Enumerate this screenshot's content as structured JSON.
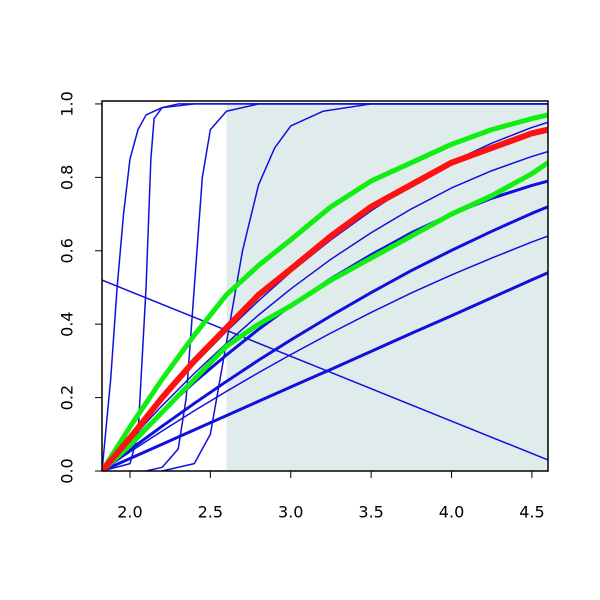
{
  "chart_data": {
    "type": "line",
    "xlim": [
      1.826,
      4.6
    ],
    "ylim": [
      0,
      1.008
    ],
    "xticks": [
      {
        "value": 2,
        "label": "2.0"
      },
      {
        "value": 2.5,
        "label": "2.5"
      },
      {
        "value": 3,
        "label": "3.0"
      },
      {
        "value": 3.5,
        "label": "3.5"
      },
      {
        "value": 4,
        "label": "4.0"
      },
      {
        "value": 4.5,
        "label": "4.5"
      }
    ],
    "yticks": [
      {
        "value": 0,
        "label": "0.0"
      },
      {
        "value": 0.2,
        "label": "0.2"
      },
      {
        "value": 0.4,
        "label": "0.4"
      },
      {
        "value": 0.6,
        "label": "0.6"
      },
      {
        "value": 0.8,
        "label": "0.8"
      },
      {
        "value": 1,
        "label": "1.0"
      }
    ],
    "shaded_region": {
      "x": [
        2.6,
        4.6
      ],
      "y": [
        0,
        1
      ],
      "color": "#e0ecec"
    },
    "x": [
      1.826,
      2.0,
      2.2,
      2.4,
      2.6,
      2.8,
      3.0,
      3.25,
      3.5,
      3.75,
      4.0,
      4.25,
      4.5,
      4.6
    ],
    "series": [
      {
        "color": "#1010dd",
        "width": 1.5,
        "x": [
          1.826,
          4.6
        ],
        "values": [
          0.52,
          0.03
        ]
      },
      {
        "color": "#1010dd",
        "width": 3,
        "values": [
          0,
          0.034,
          0.073,
          0.112,
          0.151,
          0.19,
          0.229,
          0.277,
          0.326,
          0.375,
          0.423,
          0.472,
          0.521,
          0.54
        ]
      },
      {
        "color": "#1010dd",
        "width": 1.5,
        "values": [
          0,
          0.052,
          0.109,
          0.164,
          0.217,
          0.268,
          0.317,
          0.376,
          0.432,
          0.485,
          0.534,
          0.58,
          0.624,
          0.64
        ]
      },
      {
        "color": "#1010dd",
        "width": 3,
        "values": [
          0,
          0.058,
          0.122,
          0.184,
          0.244,
          0.302,
          0.357,
          0.423,
          0.486,
          0.546,
          0.601,
          0.653,
          0.702,
          0.72
        ]
      },
      {
        "color": "#1010dd",
        "width": 3,
        "values": [
          0,
          0.077,
          0.162,
          0.242,
          0.316,
          0.386,
          0.45,
          0.524,
          0.589,
          0.649,
          0.7,
          0.743,
          0.778,
          0.79
        ]
      },
      {
        "color": "#1010dd",
        "width": 1.5,
        "values": [
          0,
          0.085,
          0.178,
          0.266,
          0.348,
          0.425,
          0.496,
          0.577,
          0.649,
          0.714,
          0.771,
          0.818,
          0.857,
          0.87
        ]
      },
      {
        "color": "#1010dd",
        "width": 1.5,
        "values": [
          0,
          0.093,
          0.195,
          0.291,
          0.38,
          0.464,
          0.542,
          0.63,
          0.709,
          0.78,
          0.842,
          0.893,
          0.936,
          0.95
        ]
      },
      {
        "color": "#1010dd",
        "width": 1.5,
        "x": [
          1.826,
          1.88,
          1.92,
          1.96,
          2.0,
          2.05,
          2.1,
          2.2,
          2.4,
          4.6
        ],
        "values": [
          0,
          0.25,
          0.5,
          0.7,
          0.85,
          0.93,
          0.97,
          0.99,
          1,
          1
        ]
      },
      {
        "color": "#1010dd",
        "width": 1.5,
        "x": [
          1.826,
          2.0,
          2.05,
          2.1,
          2.13,
          2.15,
          2.2,
          2.3,
          4.6
        ],
        "values": [
          0,
          0.02,
          0.1,
          0.5,
          0.85,
          0.96,
          0.99,
          1,
          1
        ]
      },
      {
        "color": "#1010dd",
        "width": 1.5,
        "x": [
          2.1,
          2.2,
          2.3,
          2.35,
          2.4,
          2.45,
          2.5,
          2.6,
          2.8,
          4.6
        ],
        "values": [
          0,
          0.01,
          0.06,
          0.2,
          0.5,
          0.8,
          0.93,
          0.98,
          1,
          1
        ]
      },
      {
        "color": "#1010dd",
        "width": 1.5,
        "x": [
          2.2,
          2.4,
          2.5,
          2.6,
          2.7,
          2.8,
          2.9,
          3.0,
          3.2,
          3.5,
          4.6
        ],
        "values": [
          0,
          0.02,
          0.1,
          0.35,
          0.6,
          0.78,
          0.88,
          0.94,
          0.98,
          1,
          1
        ]
      },
      {
        "color": "#11ee11",
        "width": 5,
        "values": [
          0,
          0.07,
          0.16,
          0.25,
          0.34,
          0.4,
          0.45,
          0.52,
          0.58,
          0.64,
          0.7,
          0.75,
          0.81,
          0.84
        ]
      },
      {
        "color": "#11ee11",
        "width": 5,
        "values": [
          0,
          0.12,
          0.25,
          0.37,
          0.48,
          0.56,
          0.63,
          0.72,
          0.79,
          0.84,
          0.89,
          0.93,
          0.96,
          0.97
        ]
      },
      {
        "color": "#ff1111",
        "width": 6,
        "values": [
          0,
          0.09,
          0.2,
          0.3,
          0.39,
          0.48,
          0.55,
          0.64,
          0.72,
          0.78,
          0.84,
          0.88,
          0.92,
          0.93
        ]
      }
    ]
  }
}
